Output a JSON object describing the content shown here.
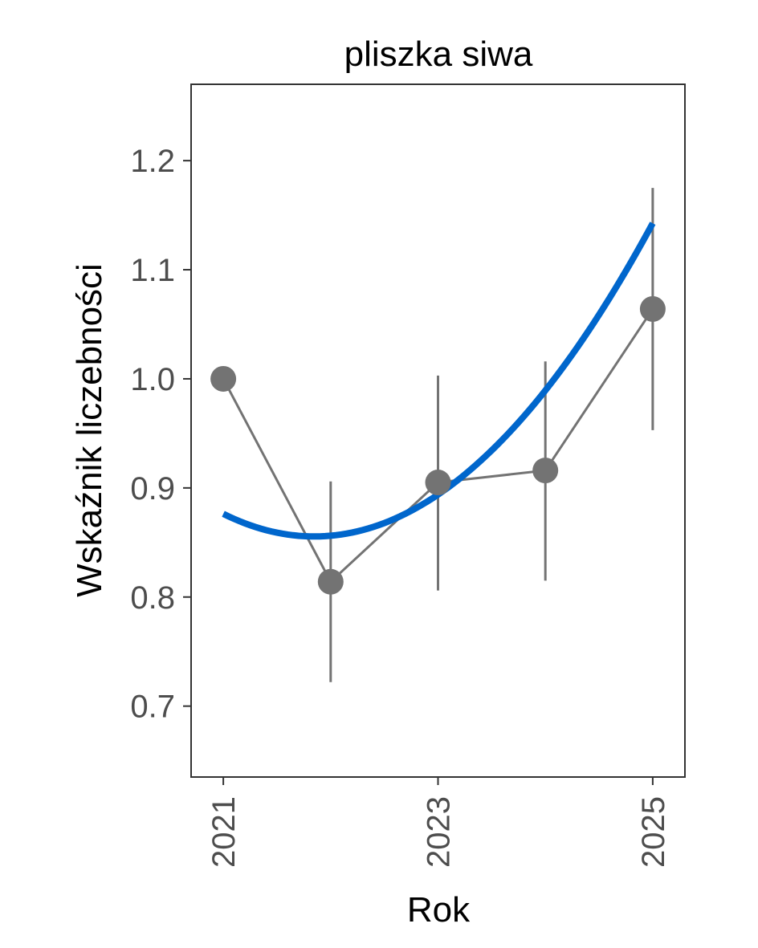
{
  "chart_data": {
    "type": "line",
    "title": "pliszka siwa",
    "xlabel": "Rok",
    "ylabel": "Wskaźnik liczebności",
    "x": [
      2021,
      2022,
      2023,
      2024,
      2025
    ],
    "series": [
      {
        "values": [
          1.0,
          0.814,
          0.905,
          0.916,
          1.064
        ],
        "lower": [
          1.0,
          0.722,
          0.806,
          0.815,
          0.953
        ],
        "upper": [
          1.0,
          0.906,
          1.003,
          1.016,
          1.175
        ],
        "color": "#737373"
      }
    ],
    "trend": {
      "color": "#0066cc",
      "coefficients": [
        0.02888,
        -0.04893,
        0.87624
      ]
    },
    "xlim": [
      2020.7,
      2025.3
    ],
    "ylim": [
      0.635,
      1.27
    ],
    "x_ticks": [
      "2021",
      "2023",
      "2025"
    ],
    "y_ticks": [
      "0.7",
      "0.8",
      "0.9",
      "1.0",
      "1.1",
      "1.2"
    ],
    "grid": false
  }
}
